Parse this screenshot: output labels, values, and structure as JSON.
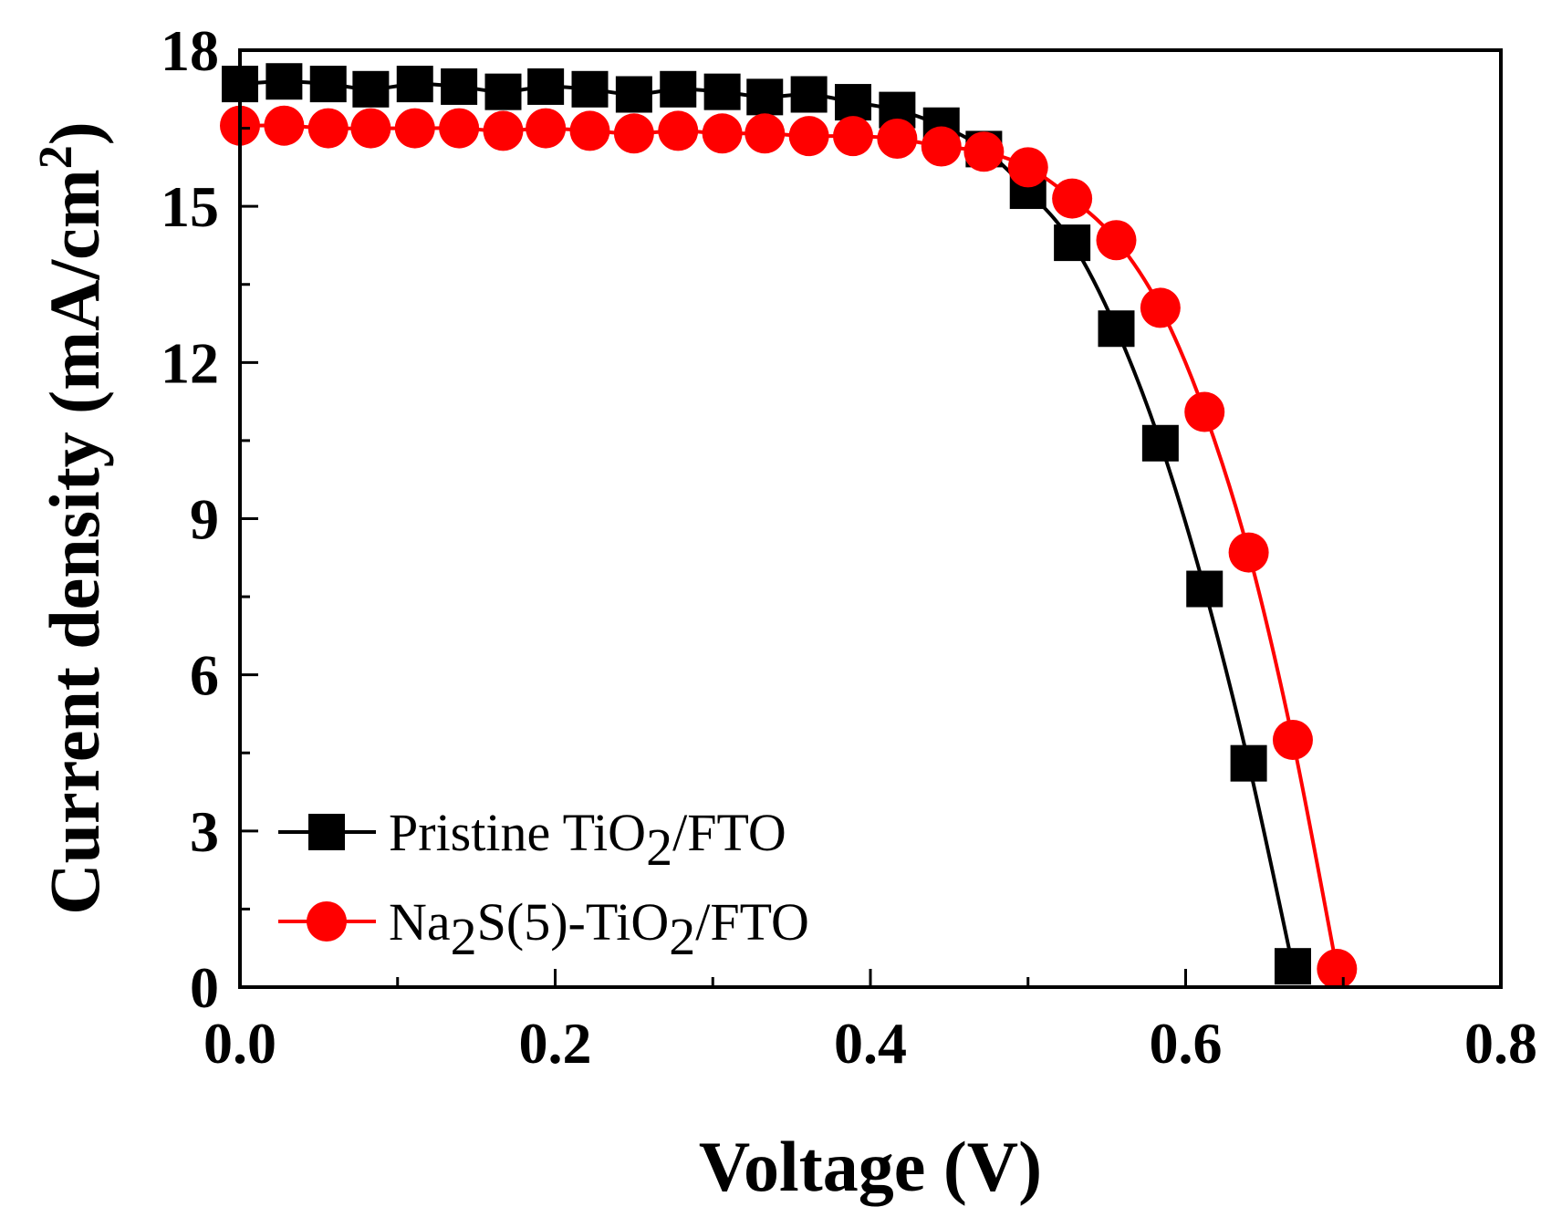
{
  "chart_data": {
    "type": "line",
    "title": "",
    "xlabel": "Voltage (V)",
    "ylabel": {
      "text": "Current density (mA/cm",
      "sup": "2",
      "close": ")"
    },
    "xlim": [
      0.0,
      0.8
    ],
    "ylim": [
      0,
      18
    ],
    "x_ticks": [
      "0.0",
      "0.2",
      "0.4",
      "0.6",
      "0.8"
    ],
    "x_tick_values": [
      0.0,
      0.2,
      0.4,
      0.6,
      0.8
    ],
    "y_ticks": [
      "0",
      "3",
      "6",
      "9",
      "12",
      "15",
      "18"
    ],
    "y_tick_values": [
      0,
      3,
      6,
      9,
      12,
      15,
      18
    ],
    "legend_position": "bottom-left",
    "series": [
      {
        "name": "Pristine TiO2/FTO",
        "legend_parts": [
          {
            "text": "Pristine TiO",
            "sub": false
          },
          {
            "text": "2",
            "sub": true
          },
          {
            "text": "/FTO",
            "sub": false
          }
        ],
        "color": "#000000",
        "marker": "square",
        "x": [
          0.0,
          0.028,
          0.056,
          0.083,
          0.111,
          0.139,
          0.167,
          0.194,
          0.222,
          0.25,
          0.278,
          0.306,
          0.333,
          0.361,
          0.389,
          0.417,
          0.445,
          0.472,
          0.5,
          0.528,
          0.556,
          0.584,
          0.612,
          0.64,
          0.668
        ],
        "y": [
          17.35,
          17.4,
          17.35,
          17.25,
          17.35,
          17.3,
          17.2,
          17.3,
          17.25,
          17.15,
          17.25,
          17.2,
          17.1,
          17.15,
          17.0,
          16.85,
          16.55,
          16.1,
          15.3,
          14.3,
          12.65,
          10.45,
          7.65,
          4.3,
          0.4
        ]
      },
      {
        "name": "Na2S(5)-TiO2/FTO",
        "legend_parts": [
          {
            "text": "Na",
            "sub": false
          },
          {
            "text": "2",
            "sub": true
          },
          {
            "text": "S(5)-TiO",
            "sub": false
          },
          {
            "text": "2",
            "sub": true
          },
          {
            "text": "/FTO",
            "sub": false
          }
        ],
        "color": "#ff0000",
        "marker": "circle",
        "x": [
          0.0,
          0.028,
          0.056,
          0.083,
          0.111,
          0.139,
          0.167,
          0.194,
          0.222,
          0.25,
          0.278,
          0.306,
          0.333,
          0.361,
          0.389,
          0.417,
          0.445,
          0.472,
          0.5,
          0.528,
          0.556,
          0.584,
          0.612,
          0.64,
          0.668,
          0.696
        ],
        "y": [
          16.55,
          16.55,
          16.5,
          16.5,
          16.5,
          16.5,
          16.45,
          16.5,
          16.45,
          16.4,
          16.45,
          16.4,
          16.4,
          16.35,
          16.35,
          16.3,
          16.15,
          16.05,
          15.75,
          15.15,
          14.35,
          13.05,
          11.05,
          8.35,
          4.75,
          0.35
        ]
      }
    ]
  }
}
